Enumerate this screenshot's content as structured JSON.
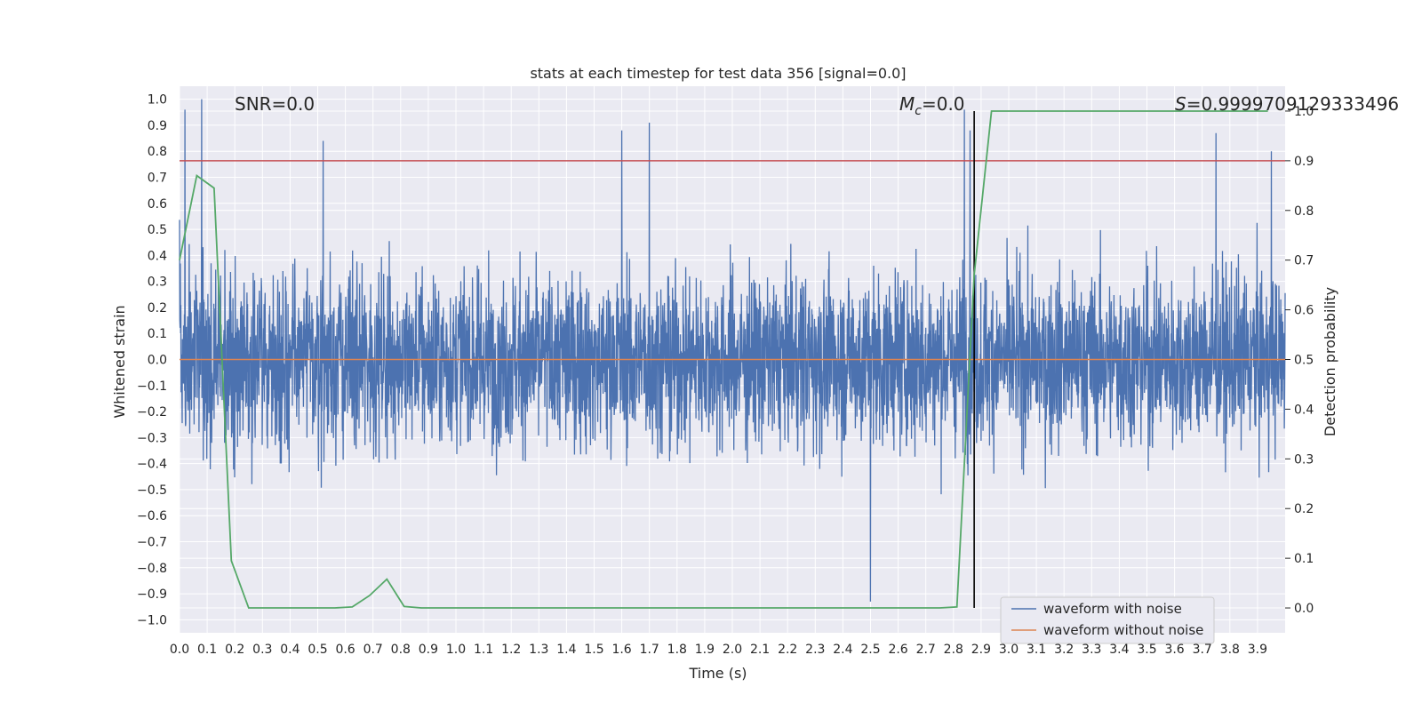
{
  "chart_data": {
    "type": "line",
    "title": "stats at each timestep for test data 356 [signal=0.0]",
    "xlabel": "Time (s)",
    "ylabel": "Whitened strain",
    "y2label": "Detection probability",
    "xlim": [
      0.0,
      4.0
    ],
    "ylim": [
      -1.05,
      1.05
    ],
    "y2lim": [
      -0.05,
      1.05
    ],
    "grid": true,
    "legend_position": "lower-right",
    "x_ticks": [
      "0.0",
      "0.1",
      "0.2",
      "0.3",
      "0.4",
      "0.5",
      "0.6",
      "0.7",
      "0.8",
      "0.9",
      "1.0",
      "1.1",
      "1.2",
      "1.3",
      "1.4",
      "1.5",
      "1.6",
      "1.7",
      "1.8",
      "1.9",
      "2.0",
      "2.1",
      "2.2",
      "2.3",
      "2.4",
      "2.5",
      "2.6",
      "2.7",
      "2.8",
      "2.9",
      "3.0",
      "3.1",
      "3.2",
      "3.3",
      "3.4",
      "3.5",
      "3.6",
      "3.7",
      "3.8",
      "3.9"
    ],
    "y_ticks": [
      "1.0",
      "0.9",
      "0.8",
      "0.7",
      "0.6",
      "0.5",
      "0.4",
      "0.3",
      "0.2",
      "0.1",
      "0.0",
      "−0.1",
      "−0.2",
      "−0.3",
      "−0.4",
      "−0.5",
      "−0.6",
      "−0.7",
      "−0.8",
      "−0.9",
      "−1.0"
    ],
    "y2_ticks": [
      "1.0",
      "0.9",
      "0.8",
      "0.7",
      "0.6",
      "0.5",
      "0.4",
      "0.3",
      "0.2",
      "0.1",
      "0.0"
    ],
    "annotations": {
      "snr": "SNR=0.0",
      "mc_symbol": "M",
      "mc_sub": "c",
      "mc_value": "=0.0",
      "s_symbol": "S",
      "s_value": "=0.9999709129333496"
    },
    "series": [
      {
        "name": "waveform with noise",
        "color": "#4c72b0",
        "axis": "left",
        "note_values": "noise band approx. ±0.3 with spikes to ±1.0",
        "peak_x": [
          0.02,
          0.08,
          0.52,
          1.6,
          1.7,
          2.5,
          2.84,
          2.86,
          3.75,
          3.95
        ],
        "peak_y": [
          0.96,
          1.0,
          0.84,
          0.88,
          0.91,
          -0.93,
          0.96,
          0.88,
          0.87,
          0.8
        ]
      },
      {
        "name": "waveform without noise",
        "color": "#dd8452",
        "axis": "left",
        "x": [
          0.0,
          4.0
        ],
        "y": [
          0.0,
          0.0
        ]
      },
      {
        "name": "",
        "color": "#55a868",
        "axis": "right",
        "x": [
          0.0,
          0.0625,
          0.125,
          0.1875,
          0.25,
          0.3125,
          0.375,
          0.4375,
          0.5,
          0.5625,
          0.625,
          0.6875,
          0.75,
          0.8125,
          0.875,
          0.9375,
          1.0,
          1.5,
          2.0,
          2.5,
          2.75,
          2.8125,
          2.875,
          2.9375,
          3.0,
          3.5,
          3.9375
        ],
        "y": [
          0.7,
          0.87,
          0.845,
          0.095,
          0.0,
          0.0,
          0.0,
          0.0,
          0.0,
          0.0,
          0.002,
          0.025,
          0.058,
          0.003,
          0.0,
          0.0,
          0.0,
          0.0,
          0.0,
          0.0,
          0.0,
          0.002,
          0.67,
          1.0,
          1.0,
          1.0,
          1.0
        ]
      }
    ],
    "threshold_line": {
      "color": "#c44e52",
      "y": 0.9,
      "axis": "right"
    },
    "marker_line": {
      "color": "#000000",
      "x": 2.875,
      "y_range": [
        0.0,
        1.0
      ],
      "axis": "right"
    }
  }
}
